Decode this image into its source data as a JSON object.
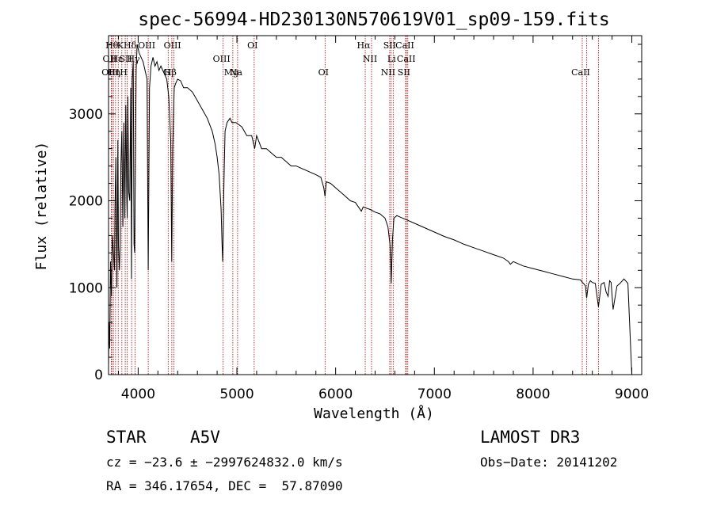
{
  "chart_data": {
    "type": "line",
    "title": "spec-56994-HD230130N570619V01_sp09-159.fits",
    "xlabel": "Wavelength (Å)",
    "ylabel": "Flux (relative)",
    "xlim": [
      3700,
      9100
    ],
    "ylim": [
      0,
      3900
    ],
    "xticks": [
      4000,
      5000,
      6000,
      7000,
      8000,
      9000
    ],
    "yticks": [
      0,
      1000,
      2000,
      3000
    ],
    "series": [
      {
        "name": "spectrum",
        "x": [
          3700,
          3705,
          3712,
          3720,
          3730,
          3740,
          3750,
          3760,
          3765,
          3775,
          3785,
          3795,
          3800,
          3810,
          3818,
          3825,
          3835,
          3845,
          3855,
          3865,
          3875,
          3885,
          3889,
          3895,
          3905,
          3915,
          3925,
          3933,
          3940,
          3950,
          3958,
          3965,
          3970,
          3980,
          3990,
          4000,
          4010,
          4030,
          4050,
          4070,
          4090,
          4102,
          4115,
          4130,
          4150,
          4170,
          4190,
          4210,
          4230,
          4250,
          4270,
          4290,
          4310,
          4330,
          4340,
          4350,
          4365,
          4380,
          4400,
          4430,
          4460,
          4500,
          4550,
          4600,
          4650,
          4700,
          4750,
          4780,
          4800,
          4820,
          4840,
          4850,
          4856,
          4861,
          4866,
          4872,
          4880,
          4900,
          4930,
          4950,
          4990,
          5050,
          5100,
          5150,
          5180,
          5200,
          5250,
          5300,
          5350,
          5400,
          5450,
          5500,
          5550,
          5600,
          5700,
          5800,
          5850,
          5880,
          5893,
          5905,
          5950,
          6000,
          6050,
          6100,
          6150,
          6200,
          6260,
          6280,
          6300,
          6350,
          6400,
          6450,
          6500,
          6530,
          6550,
          6557,
          6563,
          6569,
          6576,
          6590,
          6620,
          6660,
          6700,
          6800,
          6900,
          7000,
          7100,
          7200,
          7300,
          7400,
          7500,
          7600,
          7700,
          7750,
          7770,
          7800,
          7900,
          8000,
          8100,
          8200,
          8300,
          8400,
          8480,
          8500,
          8510,
          8530,
          8542,
          8560,
          8580,
          8600,
          8630,
          8662,
          8690,
          8720,
          8740,
          8760,
          8775,
          8790,
          8810,
          8850,
          8880,
          8920,
          8960,
          9000
        ],
        "y": [
          100,
          600,
          300,
          1300,
          900,
          1600,
          1400,
          1200,
          1900,
          2500,
          1000,
          2700,
          1500,
          1200,
          1500,
          2400,
          2800,
          1700,
          2900,
          1800,
          3100,
          2000,
          1800,
          3200,
          2100,
          2000,
          3300,
          1100,
          3400,
          3600,
          1500,
          1400,
          2200,
          3500,
          3800,
          3750,
          3700,
          3650,
          3600,
          3500,
          3400,
          1200,
          3300,
          3550,
          3650,
          3550,
          3600,
          3500,
          3550,
          3500,
          3450,
          3400,
          3200,
          2700,
          1300,
          2600,
          3300,
          3350,
          3400,
          3380,
          3300,
          3300,
          3250,
          3150,
          3050,
          2950,
          2800,
          2650,
          2500,
          2300,
          1900,
          1500,
          1300,
          1600,
          2000,
          2400,
          2800,
          2900,
          2950,
          2900,
          2900,
          2850,
          2750,
          2750,
          2600,
          2750,
          2600,
          2600,
          2550,
          2500,
          2500,
          2450,
          2400,
          2400,
          2350,
          2300,
          2270,
          2150,
          2050,
          2220,
          2200,
          2150,
          2100,
          2050,
          2000,
          1980,
          1880,
          1930,
          1920,
          1900,
          1870,
          1850,
          1800,
          1700,
          1500,
          1300,
          1050,
          1300,
          1550,
          1800,
          1830,
          1810,
          1790,
          1740,
          1690,
          1640,
          1590,
          1550,
          1500,
          1460,
          1420,
          1380,
          1340,
          1300,
          1270,
          1300,
          1250,
          1220,
          1190,
          1160,
          1130,
          1100,
          1090,
          1060,
          1050,
          1020,
          880,
          1040,
          1080,
          1060,
          1050,
          780,
          1040,
          1060,
          950,
          900,
          1080,
          1060,
          750,
          1020,
          1050,
          1100,
          1050,
          0
        ]
      }
    ],
    "line_markers": [
      {
        "w": 3727,
        "label": "OII",
        "row": 1
      },
      {
        "w": 3734,
        "label": "OIII",
        "row": 2
      },
      {
        "w": 3750,
        "label": "Hθ",
        "row": 0
      },
      {
        "w": 3771,
        "label": "Hη",
        "row": 2
      },
      {
        "w": 3798,
        "label": "Hε",
        "row": 1
      },
      {
        "w": 3835,
        "label": "K",
        "row": 0
      },
      {
        "w": 3869,
        "label": "H",
        "row": 2
      },
      {
        "w": 3889,
        "label": "SII",
        "row": 1
      },
      {
        "w": 3934,
        "label": "Hδ",
        "row": 0
      },
      {
        "w": 3969,
        "label": "Hγ",
        "row": 1
      },
      {
        "w": 4102,
        "label": "OIII",
        "row": 0
      },
      {
        "w": 4304,
        "label": "G",
        "row": 2
      },
      {
        "w": 4341,
        "label": "Hβ",
        "row": 3
      },
      {
        "w": 4363,
        "label": "OIII",
        "row": 0
      },
      {
        "w": 4861,
        "label": "OIII",
        "row": 1
      },
      {
        "w": 4959,
        "label": "Mg",
        "row": 3
      },
      {
        "w": 5007,
        "label": "Na",
        "row": 2
      },
      {
        "w": 5175,
        "label": "OI",
        "row": 0
      },
      {
        "w": 5893,
        "label": "OI",
        "row": 2
      },
      {
        "w": 6300,
        "label": "Hα",
        "row": 0
      },
      {
        "w": 6364,
        "label": "NII",
        "row": 1
      },
      {
        "w": 6548,
        "label": "NII",
        "row": 2
      },
      {
        "w": 6563,
        "label": "SII",
        "row": 0
      },
      {
        "w": 6583,
        "label": "Li",
        "row": 1
      },
      {
        "w": 6708,
        "label": "SII",
        "row": 2
      },
      {
        "w": 6717,
        "label": "CaII",
        "row": 0
      },
      {
        "w": 6731,
        "label": "CaII",
        "row": 1
      },
      {
        "w": 8498,
        "label": "CaII",
        "row": 2
      },
      {
        "w": 8542,
        "label": "",
        "row": 0
      },
      {
        "w": 8662,
        "label": "",
        "row": 0
      }
    ]
  },
  "info": {
    "object_type": "STAR",
    "spectral_class": "A5V",
    "survey": "LAMOST DR3",
    "cz": "cz = −23.6 ± −2997624832.0 km/s",
    "obs_date": "Obs−Date: 20141202",
    "coords": "RA = 346.17654, DEC =  57.87090"
  }
}
